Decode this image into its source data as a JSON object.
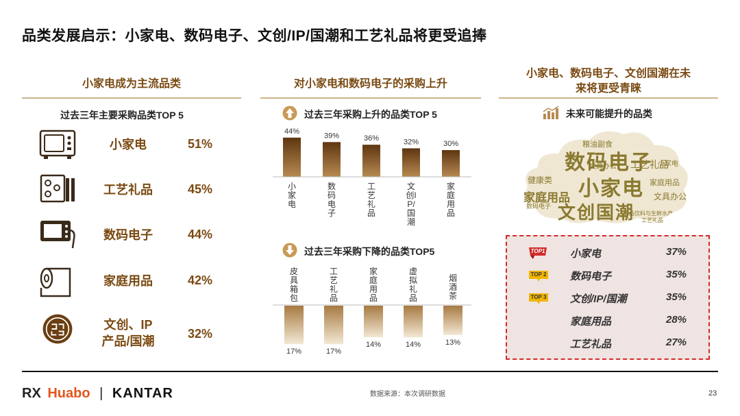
{
  "title": "品类发展启示：小家电、数码电子、文创/IP/国潮和工艺礼品将更受追捧",
  "col1": {
    "header": "小家电成为主流品类",
    "subtitle": "过去三年主要采购品类TOP 5",
    "items": [
      {
        "name": "小家电",
        "pct": "51%",
        "icon": "microwave-icon"
      },
      {
        "name": "工艺礼品",
        "pct": "45%",
        "icon": "craft-gift-icon"
      },
      {
        "name": "数码电子",
        "pct": "44%",
        "icon": "digital-device-icon"
      },
      {
        "name": "家庭用品",
        "pct": "42%",
        "icon": "paper-roll-icon"
      },
      {
        "name": "文创、IP",
        "name2": "产品/国潮",
        "pct": "32%",
        "icon": "chinese-pattern-icon"
      }
    ]
  },
  "col2": {
    "header": "对小家电和数码电子的采购上升",
    "up_title": "过去三年采购上升的品类TOP 5",
    "down_title": "过去三年采购下降的品类TOP5"
  },
  "chart_data": [
    {
      "type": "bar",
      "title": "过去三年采购上升的品类TOP 5",
      "categories": [
        "小家电",
        "数码电子",
        "工艺礼品",
        "文创IP/国潮",
        "家庭用品"
      ],
      "values": [
        44,
        39,
        36,
        32,
        30
      ],
      "labels": [
        "44%",
        "39%",
        "36%",
        "32%",
        "30%"
      ],
      "unit": "%"
    },
    {
      "type": "bar",
      "title": "过去三年采购下降的品类TOP5",
      "categories": [
        "皮具箱包",
        "工艺礼品",
        "家庭用品",
        "虚拟礼品",
        "烟酒茶"
      ],
      "values": [
        17,
        17,
        14,
        14,
        13
      ],
      "labels": [
        "17%",
        "17%",
        "14%",
        "14%",
        "13%"
      ],
      "unit": "%"
    }
  ],
  "col3": {
    "header_line1": "小家电、数码电子、文创国潮在未",
    "header_line2": "来将更受青睐",
    "subtitle": "未来可能提升的品类",
    "cloud_words": [
      "数码电子",
      "小家电",
      "文创国潮",
      "家庭用品",
      "工艺礼品",
      "粮油副食",
      "健康类",
      "小家电",
      "文具办公",
      "文具办公",
      "数码电子",
      "家庭用品",
      "食品饮料与生鲜水产",
      "工艺礼品"
    ],
    "top": [
      {
        "badge": "TOP1",
        "name": "小家电",
        "pct": "37%"
      },
      {
        "badge": "TOP 2",
        "name": "数码电子",
        "pct": "35%"
      },
      {
        "badge": "TOP 3",
        "name": "文创/IP/国潮",
        "pct": "35%"
      },
      {
        "badge": "",
        "name": "家庭用品",
        "pct": "28%"
      },
      {
        "badge": "",
        "name": "工艺礼品",
        "pct": "27%"
      }
    ]
  },
  "footer": {
    "logo_mark": "RX",
    "logo_huabo": "Huabo",
    "logo_sep": "|",
    "logo_kantar": "KANTAR",
    "source": "数据来源：本次调研数据",
    "page": "23"
  },
  "colors": {
    "accent": "#7a4a12",
    "bar_dark": "#6b3f12",
    "bar_light": "#e8d8bc",
    "red": "#d12a2a"
  }
}
